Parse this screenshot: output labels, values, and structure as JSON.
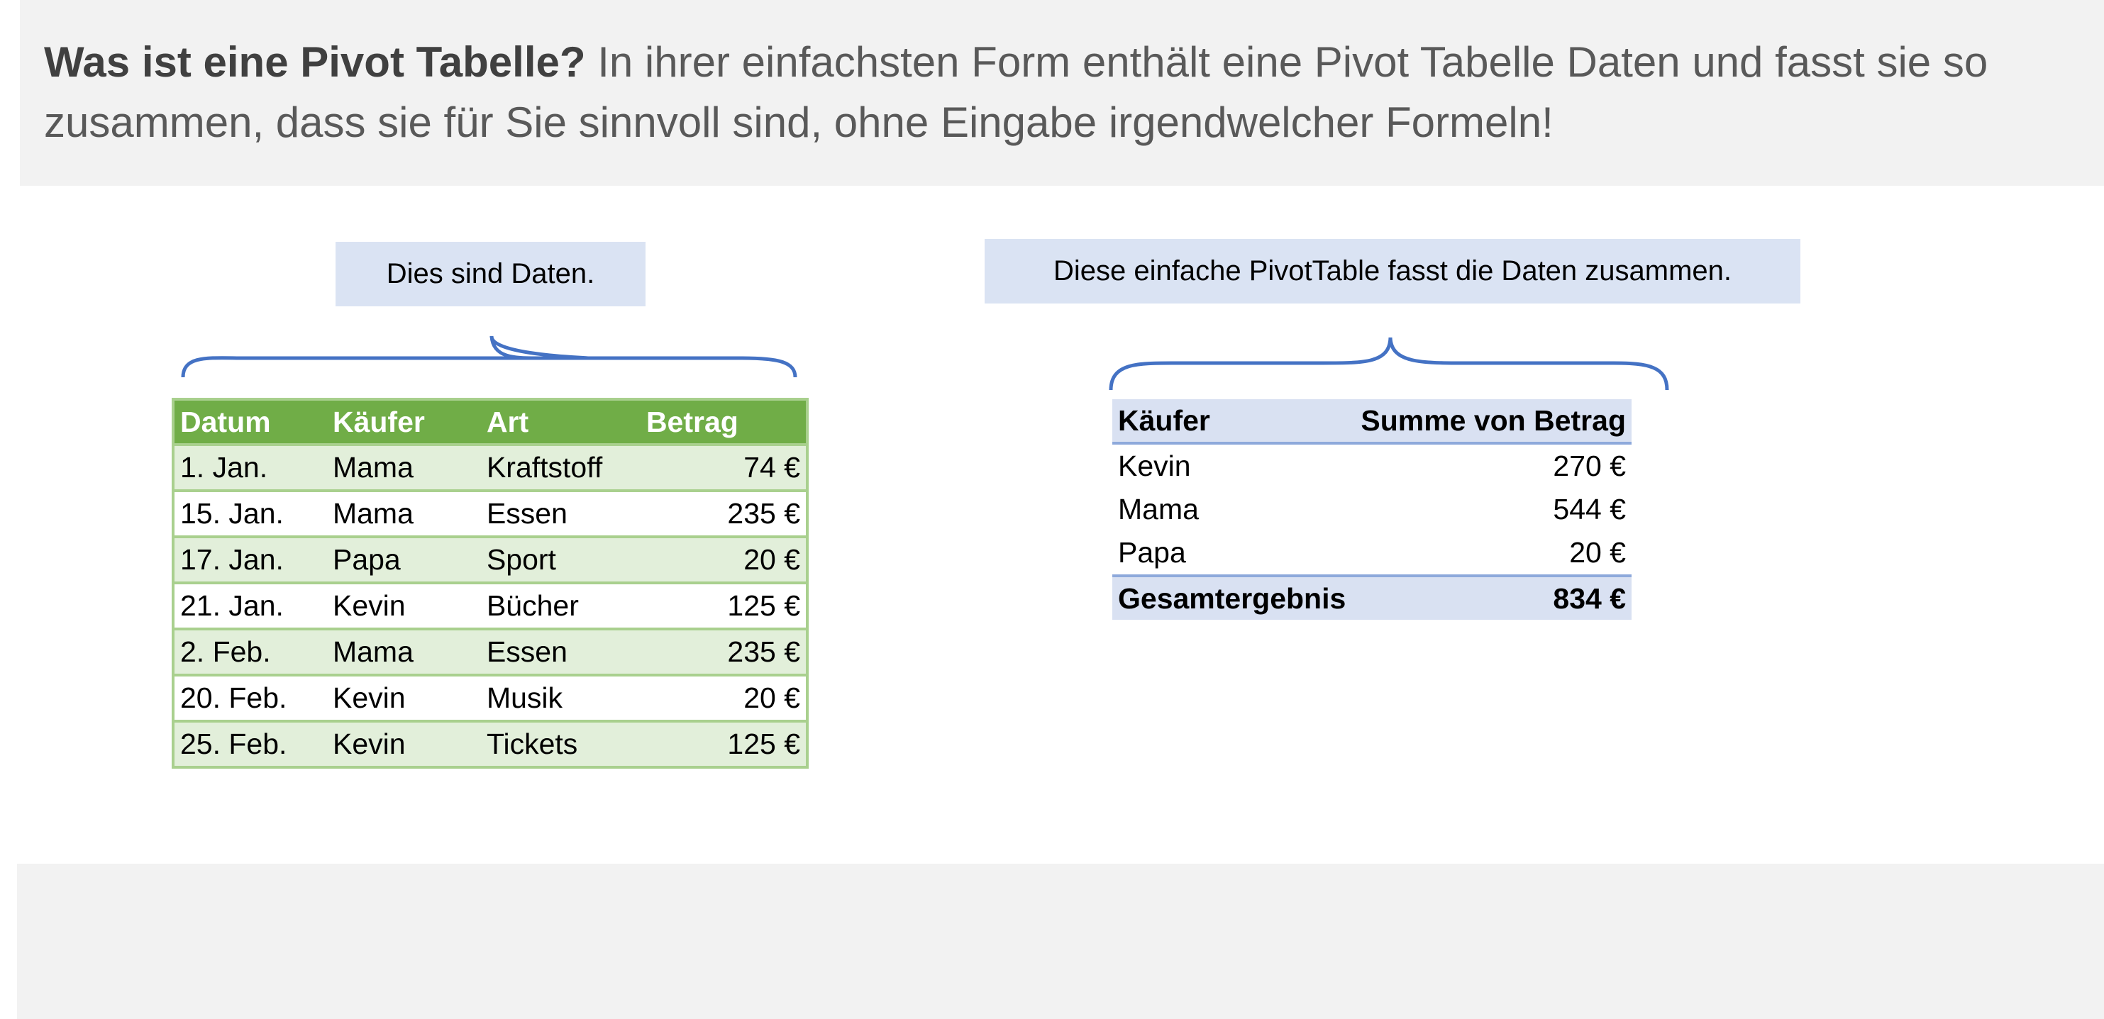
{
  "intro": {
    "heading": "Was ist eine Pivot Tabelle?",
    "body": " In ihrer einfachsten Form enthält eine Pivot Tabelle Daten und fasst sie so zusammen, dass sie für Sie sinnvoll sind, ohne Eingabe irgendwelcher Formeln!"
  },
  "callouts": {
    "data": "Dies sind Daten.",
    "pivot": "Diese einfache PivotTable fasst die Daten zusammen."
  },
  "data_table": {
    "headers": [
      "Datum",
      "Käufer",
      "Art",
      "Betrag"
    ],
    "rows": [
      [
        "1. Jan.",
        "Mama",
        "Kraftstoff",
        "74 €"
      ],
      [
        "15. Jan.",
        "Mama",
        "Essen",
        "235 €"
      ],
      [
        "17. Jan.",
        "Papa",
        "Sport",
        "20 €"
      ],
      [
        "21. Jan.",
        "Kevin",
        "Bücher",
        "125 €"
      ],
      [
        "2. Feb.",
        "Mama",
        "Essen",
        "235 €"
      ],
      [
        "20. Feb.",
        "Kevin",
        "Musik",
        "20 €"
      ],
      [
        "25. Feb.",
        "Kevin",
        "Tickets",
        "125 €"
      ]
    ]
  },
  "pivot_table": {
    "headers": [
      "Käufer",
      "Summe von Betrag"
    ],
    "rows": [
      [
        "Kevin",
        "270 €"
      ],
      [
        "Mama",
        "544 €"
      ],
      [
        "Papa",
        "20 €"
      ]
    ],
    "total": [
      "Gesamtergebnis",
      "834 €"
    ]
  },
  "colors": {
    "header_green": "#70ad47",
    "row_green": "#e2efda",
    "border_green": "#a9d08e",
    "pivot_blue": "#d9e1f2",
    "brace_blue": "#4472c4"
  }
}
